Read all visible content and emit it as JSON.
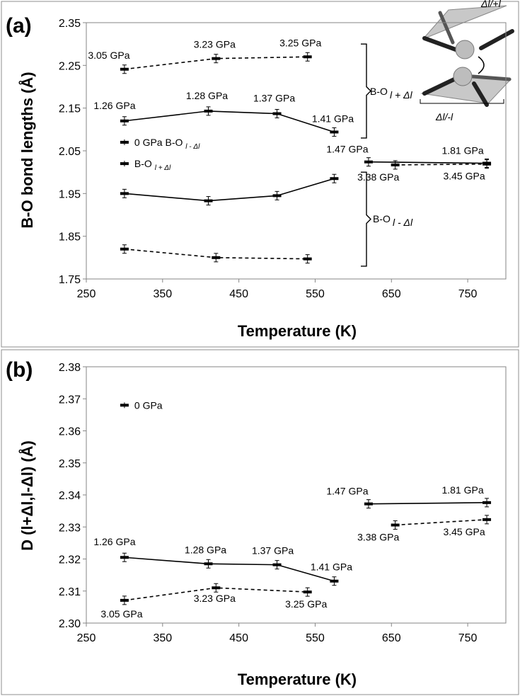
{
  "figure": {
    "panel_a_label": "(a)",
    "panel_b_label": "(b)",
    "inset": {
      "top_label": "Δl/+l",
      "bottom_label": "Δl/-l"
    }
  },
  "chart_data": [
    {
      "type": "line",
      "panel": "(a)",
      "xlabel": "Temperature (K)",
      "ylabel": "B-O bond lengths (Å)",
      "xlim": [
        250,
        800
      ],
      "ylim": [
        1.75,
        2.35
      ],
      "xticks": [
        "250",
        "350",
        "450",
        "550",
        "650",
        "750"
      ],
      "yticks": [
        "1.75",
        "1.85",
        "1.95",
        "2.05",
        "2.15",
        "2.25",
        "2.35"
      ],
      "series": [
        {
          "style": "dashed",
          "x": [
            300,
            420,
            540
          ],
          "y": [
            2.241,
            2.266,
            2.27
          ],
          "labels": [
            "3.05 GPa",
            "3.23 GPa",
            "3.25 GPa"
          ]
        },
        {
          "style": "solid",
          "x": [
            300,
            410,
            500,
            575
          ],
          "y": [
            2.12,
            2.143,
            2.137,
            2.094
          ],
          "labels": [
            "1.26 GPa",
            "1.28 GPa",
            "1.37 GPa",
            "1.41 GPa"
          ]
        },
        {
          "style": "solid",
          "x": [
            300,
            410,
            500,
            575
          ],
          "y": [
            1.95,
            1.933,
            1.945,
            1.985
          ],
          "labels": []
        },
        {
          "style": "dashed",
          "x": [
            300,
            420,
            540
          ],
          "y": [
            1.82,
            1.8,
            1.797
          ],
          "labels": []
        },
        {
          "style": "solid",
          "x": [
            620,
            775
          ],
          "y": [
            2.024,
            2.021
          ],
          "labels": [
            "1.47 GPa",
            "1.81 GPa"
          ]
        },
        {
          "style": "dashed",
          "x": [
            655,
            775
          ],
          "y": [
            2.017,
            2.019
          ],
          "labels": [
            "3.38 GPa",
            "3.45 GPa"
          ]
        }
      ],
      "points": [
        {
          "x": 300,
          "y": 2.07,
          "label": "0 GPa B-O",
          "sub": "l - Δl"
        },
        {
          "x": 300,
          "y": 2.02,
          "label": "B-O",
          "sub": "l + Δl"
        }
      ],
      "bracket_labels": [
        {
          "label": "B-O",
          "sub": "l + Δl"
        },
        {
          "label": "B-O",
          "sub": "l - Δl"
        }
      ]
    },
    {
      "type": "line",
      "panel": "(b)",
      "xlabel": "Temperature (K)",
      "ylabel": "D (l+Δl,l-Δl) (Å)",
      "xlim": [
        250,
        800
      ],
      "ylim": [
        2.3,
        2.38
      ],
      "xticks": [
        "250",
        "350",
        "450",
        "550",
        "650",
        "750"
      ],
      "yticks": [
        "2.30",
        "2.31",
        "2.32",
        "2.33",
        "2.34",
        "2.35",
        "2.36",
        "2.37",
        "2.38"
      ],
      "series": [
        {
          "style": "solid",
          "x": [
            300,
            410,
            500,
            575
          ],
          "y": [
            2.3205,
            2.3185,
            2.3182,
            2.3131
          ],
          "labels": [
            "1.26 GPa",
            "1.28 GPa",
            "1.37 GPa",
            "1.41 GPa"
          ]
        },
        {
          "style": "dashed",
          "x": [
            300,
            420,
            540
          ],
          "y": [
            2.3071,
            2.311,
            2.3097
          ],
          "labels": [
            "3.05 GPa",
            "3.23 GPa",
            "3.25 GPa"
          ]
        },
        {
          "style": "solid",
          "x": [
            620,
            775
          ],
          "y": [
            2.3372,
            2.3376
          ],
          "labels": [
            "1.47 GPa",
            "1.81 GPa"
          ]
        },
        {
          "style": "dashed",
          "x": [
            655,
            775
          ],
          "y": [
            2.3306,
            2.3323
          ],
          "labels": [
            "3.38 GPa",
            "3.45 GPa"
          ]
        }
      ],
      "points": [
        {
          "x": 300,
          "y": 2.368,
          "label": "0 GPa"
        }
      ]
    }
  ]
}
